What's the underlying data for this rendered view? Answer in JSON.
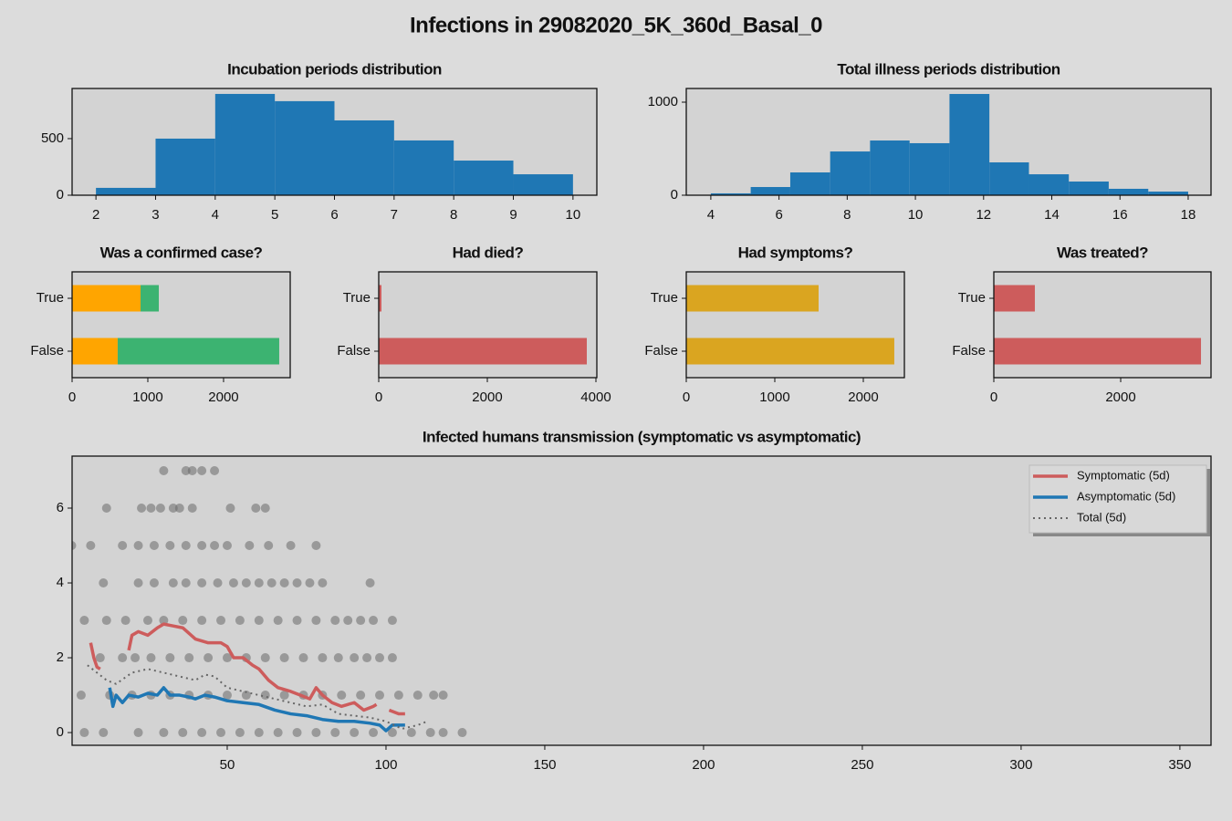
{
  "title": "Infections in 29082020_5K_360d_Basal_0",
  "chart_data": [
    {
      "type": "histogram",
      "title": "Incubation periods distribution",
      "color": "#1f77b4",
      "bins": [
        2,
        3,
        4,
        5,
        6,
        7,
        8,
        9,
        10
      ],
      "values": [
        65,
        500,
        895,
        831,
        661,
        484,
        306,
        185
      ],
      "xlim": [
        1.6,
        10.4
      ],
      "xticks": [
        2,
        3,
        4,
        5,
        6,
        7,
        8,
        9,
        10
      ],
      "ylim": [
        0,
        943
      ],
      "yticks": [
        0,
        500
      ]
    },
    {
      "type": "histogram",
      "title": "Total illness periods distribution",
      "color": "#1f77b4",
      "bins": [
        4,
        5.17,
        6.33,
        7.5,
        8.67,
        9.83,
        11,
        12.17,
        13.33,
        14.5,
        15.67,
        16.83,
        18
      ],
      "values": [
        20,
        88,
        245,
        470,
        588,
        559,
        1088,
        353,
        225,
        147,
        69,
        39
      ],
      "xlim": [
        3.28,
        18.67
      ],
      "xticks": [
        4,
        6,
        8,
        10,
        12,
        14,
        16,
        18
      ],
      "ylim": [
        0,
        1147
      ],
      "yticks": [
        0,
        1000
      ]
    },
    {
      "type": "hbar",
      "title": "Was a confirmed case?",
      "categories": [
        "True",
        "False"
      ],
      "series": [
        {
          "color": "#ffa500",
          "values": [
            904,
            602
          ]
        },
        {
          "color": "#3cb371",
          "values": [
            241,
            2133
          ]
        }
      ],
      "xlim": [
        0,
        2880
      ],
      "xticks": [
        0,
        1000,
        2000
      ]
    },
    {
      "type": "hbar",
      "title": "Had died?",
      "categories": [
        "True",
        "False"
      ],
      "series": [
        {
          "color": "#cd5c5c",
          "values": [
            50,
            3832
          ]
        }
      ],
      "xlim": [
        0,
        4017
      ],
      "xticks": [
        0,
        2000,
        4000
      ]
    },
    {
      "type": "hbar",
      "title": "Had symptoms?",
      "categories": [
        "True",
        "False"
      ],
      "series": [
        {
          "color": "#daa520",
          "values": [
            1495,
            2350
          ]
        }
      ],
      "xlim": [
        0,
        2464
      ],
      "xticks": [
        0,
        1000,
        2000
      ]
    },
    {
      "type": "hbar",
      "title": "Was treated?",
      "categories": [
        "True",
        "False"
      ],
      "series": [
        {
          "color": "#cd5c5c",
          "values": [
            647,
            3266
          ]
        }
      ],
      "xlim": [
        0,
        3424
      ],
      "xticks": [
        0,
        2000
      ]
    },
    {
      "type": "scatter",
      "title": "Infected humans transmission (symptomatic vs asymptomatic)",
      "xlim": [
        1.15,
        359.8
      ],
      "xticks": [
        50,
        100,
        150,
        200,
        250,
        300,
        350
      ],
      "ylim": [
        -0.34,
        7.39
      ],
      "yticks": [
        0,
        2,
        4,
        6
      ],
      "legend": "upper right",
      "points": {
        "color": "#696969",
        "x": [
          30,
          37,
          39,
          42,
          46,
          12,
          23,
          26,
          29,
          33,
          35,
          39,
          51,
          59,
          62,
          1,
          7,
          17,
          22,
          27,
          32,
          37,
          42,
          46,
          50,
          57,
          63,
          70,
          78,
          11,
          22,
          27,
          33,
          37,
          42,
          47,
          52,
          56,
          60,
          64,
          68,
          72,
          76,
          80,
          95,
          5,
          12,
          18,
          25,
          30,
          36,
          42,
          48,
          54,
          60,
          66,
          72,
          78,
          84,
          88,
          92,
          96,
          102,
          10,
          17,
          21,
          26,
          32,
          38,
          44,
          50,
          56,
          62,
          68,
          74,
          80,
          85,
          90,
          94,
          98,
          102,
          4,
          13,
          20,
          26,
          32,
          38,
          44,
          50,
          56,
          62,
          68,
          74,
          80,
          86,
          92,
          98,
          104,
          110,
          115,
          118,
          5,
          11,
          22,
          30,
          36,
          42,
          48,
          54,
          60,
          66,
          72,
          78,
          84,
          90,
          96,
          102,
          108,
          114,
          118,
          124
        ],
        "y": [
          7,
          7,
          7,
          7,
          7,
          6,
          6,
          6,
          6,
          6,
          6,
          6,
          6,
          6,
          6,
          5,
          5,
          5,
          5,
          5,
          5,
          5,
          5,
          5,
          5,
          5,
          5,
          5,
          5,
          4,
          4,
          4,
          4,
          4,
          4,
          4,
          4,
          4,
          4,
          4,
          4,
          4,
          4,
          4,
          4,
          3,
          3,
          3,
          3,
          3,
          3,
          3,
          3,
          3,
          3,
          3,
          3,
          3,
          3,
          3,
          3,
          3,
          3,
          2,
          2,
          2,
          2,
          2,
          2,
          2,
          2,
          2,
          2,
          2,
          2,
          2,
          2,
          2,
          2,
          2,
          2,
          1,
          1,
          1,
          1,
          1,
          1,
          1,
          1,
          1,
          1,
          1,
          1,
          1,
          1,
          1,
          1,
          1,
          1,
          1,
          1,
          0,
          0,
          0,
          0,
          0,
          0,
          0,
          0,
          0,
          0,
          0,
          0,
          0,
          0,
          0,
          0,
          0,
          0,
          0,
          0
        ]
      },
      "series": [
        {
          "name": "Symptomatic (5d)",
          "color": "#cd5c5c",
          "x": [
            7,
            8,
            9,
            10,
            14,
            19,
            20,
            22,
            25,
            28,
            30,
            33,
            36,
            40,
            44,
            48,
            50,
            52,
            55,
            58,
            60,
            63,
            66,
            70,
            73,
            76,
            78,
            80,
            83,
            86,
            90,
            93,
            96,
            97,
            100,
            101,
            104,
            106
          ],
          "values": [
            2.4,
            2.0,
            1.75,
            1.7,
            null,
            2.2,
            2.6,
            2.7,
            2.6,
            2.8,
            2.9,
            2.85,
            2.8,
            2.5,
            2.4,
            2.4,
            2.3,
            2.0,
            2.0,
            1.8,
            1.7,
            1.4,
            1.2,
            1.1,
            1.0,
            0.9,
            1.2,
            1.0,
            0.8,
            0.7,
            0.8,
            0.6,
            0.7,
            0.75,
            null,
            0.6,
            0.5,
            0.5
          ]
        },
        {
          "name": "Asymptomatic (5d)",
          "color": "#1f77b4",
          "x": [
            13,
            14,
            15,
            17,
            19,
            22,
            25,
            28,
            30,
            32,
            35,
            38,
            40,
            43,
            46,
            50,
            55,
            60,
            65,
            70,
            75,
            80,
            85,
            90,
            95,
            98,
            100,
            102,
            104,
            106
          ],
          "values": [
            1.2,
            0.7,
            1.0,
            0.8,
            1.0,
            0.95,
            1.05,
            1.0,
            1.2,
            1.0,
            1.0,
            0.95,
            0.9,
            1.0,
            0.95,
            0.85,
            0.8,
            0.75,
            0.6,
            0.5,
            0.45,
            0.35,
            0.3,
            0.3,
            0.25,
            0.2,
            0.05,
            0.2,
            0.2,
            0.2
          ]
        },
        {
          "name": "Total (5d)",
          "color": "#666666",
          "linestyle": "dotted",
          "x": [
            6,
            9,
            12,
            15,
            20,
            25,
            30,
            35,
            40,
            43,
            46,
            50,
            55,
            60,
            65,
            70,
            75,
            80,
            85,
            90,
            95,
            100,
            105,
            110,
            113
          ],
          "values": [
            1.8,
            1.6,
            1.4,
            1.3,
            1.6,
            1.7,
            1.6,
            1.5,
            1.4,
            1.55,
            1.5,
            1.2,
            1.1,
            1.0,
            0.9,
            0.8,
            0.7,
            0.75,
            0.5,
            0.45,
            0.4,
            0.3,
            0.1,
            0.2,
            0.3
          ]
        }
      ]
    }
  ]
}
